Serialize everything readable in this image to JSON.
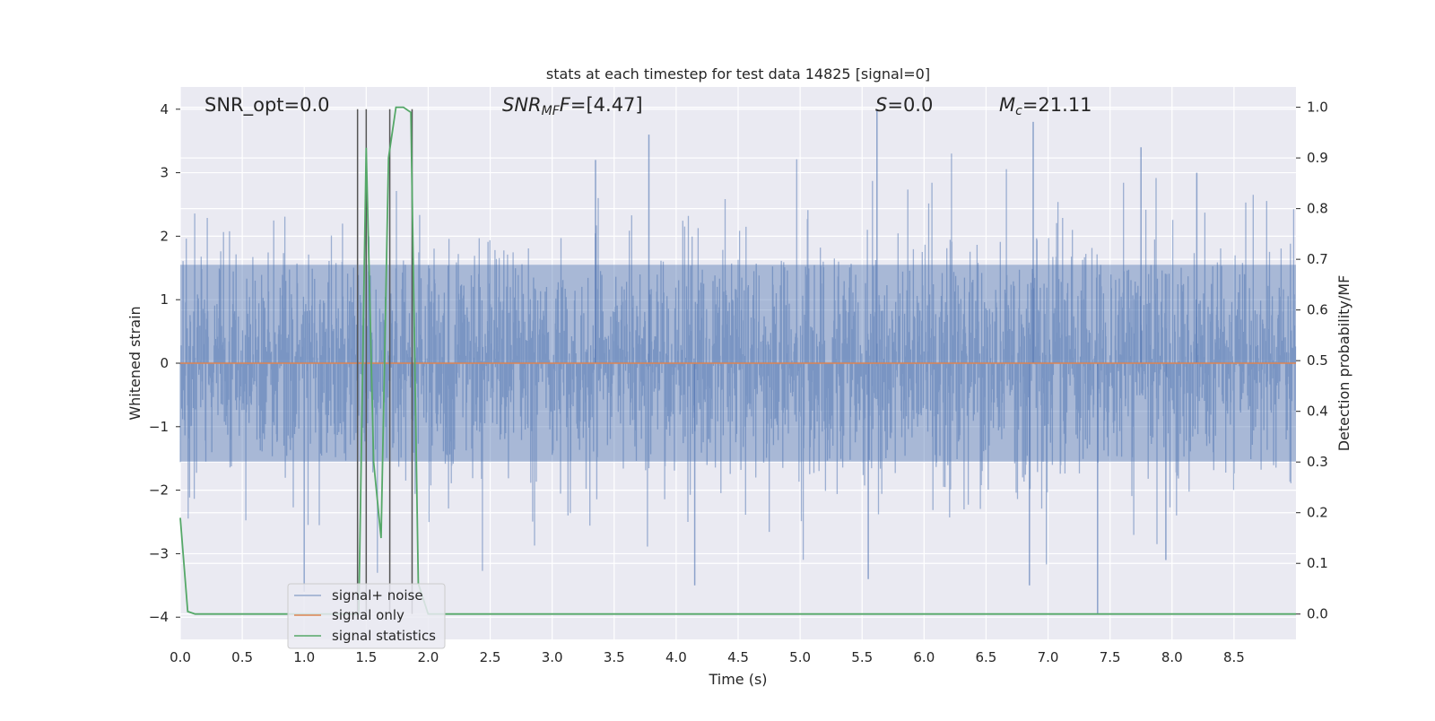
{
  "chart_data": {
    "type": "line",
    "title": "stats at each timestep for test data 14825 [signal=0]",
    "xlabel": "Time (s)",
    "ylabel": "Whitened strain",
    "y2label": "Detection probability/MF",
    "xlim": [
      0.0,
      9.0
    ],
    "ylim": [
      -4.35,
      4.35
    ],
    "y2lim": [
      -0.05,
      1.04
    ],
    "x_ticks": [
      "0.0",
      "0.5",
      "1.0",
      "1.5",
      "2.0",
      "2.5",
      "3.0",
      "3.5",
      "4.0",
      "4.5",
      "5.0",
      "5.5",
      "6.0",
      "6.5",
      "7.0",
      "7.5",
      "8.0",
      "8.5"
    ],
    "y_ticks": [
      "4",
      "3",
      "2",
      "1",
      "0",
      "−1",
      "−2",
      "−3",
      "−4"
    ],
    "y2_ticks": [
      "1.0",
      "0.9",
      "0.8",
      "0.7",
      "0.6",
      "0.5",
      "0.4",
      "0.3",
      "0.2",
      "0.1",
      "0.0"
    ],
    "grid": true,
    "legend_position": "lower-left",
    "annotations": {
      "snr_opt": "SNR_opt=0.0",
      "snr_mf_main": "SNR",
      "snr_mf_sub": "MF",
      "snr_mf_value": "=[4.47]",
      "s_var": "S",
      "s_value": "=0.0",
      "mc_var": "M",
      "mc_sub": "c",
      "mc_value": "=21.11"
    },
    "series": [
      {
        "name": "signal+ noise",
        "color": "#4c72b0",
        "kind": "noise",
        "envelope_typical": 1.6,
        "peaks": [
          {
            "x": 1.5,
            "y": 3.3
          },
          {
            "x": 3.35,
            "y": 3.2
          },
          {
            "x": 3.78,
            "y": 3.6
          },
          {
            "x": 5.62,
            "y": 4.0
          },
          {
            "x": 6.88,
            "y": 3.8
          },
          {
            "x": 7.75,
            "y": 3.4
          },
          {
            "x": 8.2,
            "y": 3.0
          },
          {
            "x": 1.0,
            "y": -3.6
          },
          {
            "x": 4.15,
            "y": -3.5
          },
          {
            "x": 5.55,
            "y": -3.4
          },
          {
            "x": 6.85,
            "y": -3.5
          },
          {
            "x": 7.4,
            "y": -3.95
          },
          {
            "x": 7.95,
            "y": -3.1
          }
        ]
      },
      {
        "name": "signal only",
        "color": "#dd8452",
        "x": [
          0.0,
          9.0
        ],
        "y": [
          0.0,
          0.0
        ]
      },
      {
        "name": "signal statistics",
        "color": "#55a868",
        "axis": "right",
        "x": [
          0.0,
          0.06,
          0.12,
          1.38,
          1.44,
          1.5,
          1.56,
          1.62,
          1.68,
          1.74,
          1.8,
          1.86,
          1.92,
          2.0,
          9.0
        ],
        "y": [
          0.19,
          0.005,
          0.0,
          0.0,
          0.0,
          0.92,
          0.3,
          0.15,
          0.9,
          1.0,
          1.0,
          0.99,
          0.06,
          0.0,
          0.0
        ]
      }
    ],
    "vertical_lines": {
      "color": "#555555",
      "x": [
        1.43,
        1.5,
        1.69,
        1.87
      ],
      "y_top": 4.0,
      "y_bottom": -3.95
    }
  }
}
